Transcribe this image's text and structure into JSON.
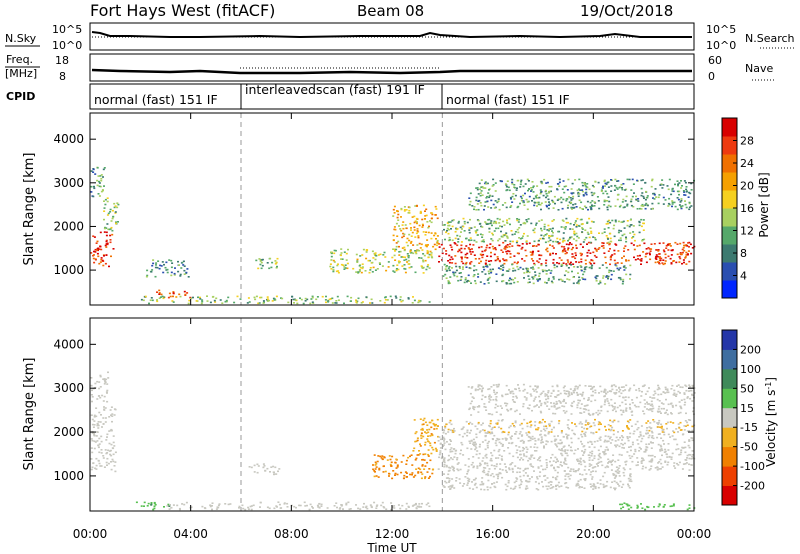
{
  "header": {
    "title": "Fort Hays West (fitACF)",
    "beam": "Beam 08",
    "date": "19/Oct/2018"
  },
  "status_panels": {
    "nsky_label": "N.Sky",
    "nsearch_label": "N.Search",
    "noise_ticks": [
      "10^5",
      "10^0"
    ],
    "freq_label_line1": "Freq.",
    "freq_label_line2": "[MHz]",
    "freq_ticks": [
      "18",
      "8"
    ],
    "nave_label": "Nave",
    "nave_ticks": [
      "60",
      "0"
    ],
    "cpid_label": "CPID",
    "cpid_segments": [
      {
        "label": "normal (fast) 151 IF",
        "start_hour": 0,
        "end_hour": 6
      },
      {
        "label": "interleavedscan (fast) 191 IF",
        "start_hour": 6,
        "end_hour": 14
      },
      {
        "label": "normal (fast) 151 IF",
        "start_hour": 14,
        "end_hour": 24
      }
    ]
  },
  "axes": {
    "ylabel": "Slant Range [km]",
    "yticks": [
      1000,
      2000,
      3000,
      4000
    ],
    "ylim": [
      200,
      4600
    ],
    "xlabel": "Time UT",
    "xticks": [
      "00:00",
      "04:00",
      "08:00",
      "12:00",
      "16:00",
      "20:00",
      "00:00"
    ],
    "xlim_hours": [
      0,
      24
    ],
    "mode_change_hours": [
      6,
      14
    ]
  },
  "power_colorbar": {
    "label": "Power [dB]",
    "ticks": [
      "28",
      "24",
      "20",
      "16",
      "12",
      "8",
      "4"
    ],
    "colors": [
      "#0026ff",
      "#2a4fb0",
      "#3c7a70",
      "#55a86a",
      "#a8d060",
      "#f5d020",
      "#f5a000",
      "#f07000",
      "#ee3a10",
      "#d80000"
    ]
  },
  "velocity_colorbar": {
    "label": "Velocity [m s^-1]",
    "ticks": [
      "200",
      "100",
      "50",
      "15",
      "-15",
      "-50",
      "-100",
      "-200"
    ],
    "colors": [
      "#2436a8",
      "#3f6ea0",
      "#3f8a5a",
      "#58c050",
      "#c8c8c0",
      "#f0b020",
      "#f08000",
      "#ee4000",
      "#d80000"
    ]
  },
  "chart_data": [
    {
      "type": "heatmap",
      "title": "Power",
      "xlabel": "Time UT",
      "ylabel": "Slant Range [km]",
      "ylim": [
        200,
        4600
      ],
      "value_label": "Power [dB]",
      "features": [
        {
          "t0": 0.0,
          "t1": 0.9,
          "r0": 1100,
          "r1": 1900,
          "level": 26
        },
        {
          "t0": 0.5,
          "t1": 1.1,
          "r0": 1900,
          "r1": 2700,
          "level": 12
        },
        {
          "t0": 0.0,
          "t1": 0.6,
          "r0": 2700,
          "r1": 3400,
          "level": 10
        },
        {
          "t0": 2.6,
          "t1": 4.0,
          "r0": 380,
          "r1": 560,
          "level": 24
        },
        {
          "t0": 2.2,
          "t1": 3.9,
          "r0": 850,
          "r1": 1250,
          "level": 8
        },
        {
          "t0": 2.0,
          "t1": 13.5,
          "r0": 250,
          "r1": 420,
          "level": 12
        },
        {
          "t0": 6.3,
          "t1": 7.5,
          "r0": 1050,
          "r1": 1300,
          "level": 12
        },
        {
          "t0": 9.5,
          "t1": 13.6,
          "r0": 950,
          "r1": 1500,
          "level": 14
        },
        {
          "t0": 12.0,
          "t1": 13.8,
          "r0": 1400,
          "r1": 2500,
          "level": 18
        },
        {
          "t0": 13.8,
          "t1": 24.0,
          "r0": 1150,
          "r1": 1650,
          "level": 26
        },
        {
          "t0": 14.0,
          "t1": 22.0,
          "r0": 1650,
          "r1": 2200,
          "level": 12
        },
        {
          "t0": 15.0,
          "t1": 24.0,
          "r0": 2400,
          "r1": 3100,
          "level": 10
        },
        {
          "t0": 14.0,
          "t1": 21.5,
          "r0": 700,
          "r1": 1150,
          "level": 10
        }
      ]
    },
    {
      "type": "heatmap",
      "title": "Velocity",
      "xlabel": "Time UT",
      "ylabel": "Slant Range [km]",
      "ylim": [
        200,
        4600
      ],
      "value_label": "Velocity [m s^-1]",
      "features": [
        {
          "t0": 0.0,
          "t1": 1.0,
          "r0": 1100,
          "r1": 2600,
          "level": 0
        },
        {
          "t0": 0.0,
          "t1": 0.7,
          "r0": 2700,
          "r1": 3400,
          "level": 0
        },
        {
          "t0": 1.8,
          "t1": 3.2,
          "r0": 250,
          "r1": 420,
          "level": 40
        },
        {
          "t0": 3.0,
          "t1": 13.5,
          "r0": 250,
          "r1": 420,
          "level": 0
        },
        {
          "t0": 6.3,
          "t1": 7.5,
          "r0": 1050,
          "r1": 1300,
          "level": 0
        },
        {
          "t0": 11.2,
          "t1": 13.6,
          "r0": 950,
          "r1": 1500,
          "level": -60
        },
        {
          "t0": 12.8,
          "t1": 13.8,
          "r0": 1500,
          "r1": 2400,
          "level": -40
        },
        {
          "t0": 13.8,
          "t1": 24.0,
          "r0": 1150,
          "r1": 2000,
          "level": 0
        },
        {
          "t0": 14.0,
          "t1": 24.0,
          "r0": 2000,
          "r1": 2300,
          "level": -10
        },
        {
          "t0": 15.0,
          "t1": 24.0,
          "r0": 2400,
          "r1": 3100,
          "level": 0
        },
        {
          "t0": 14.0,
          "t1": 21.5,
          "r0": 700,
          "r1": 1150,
          "level": 0
        },
        {
          "t0": 21.0,
          "t1": 24.0,
          "r0": 250,
          "r1": 400,
          "level": 30
        }
      ]
    }
  ]
}
